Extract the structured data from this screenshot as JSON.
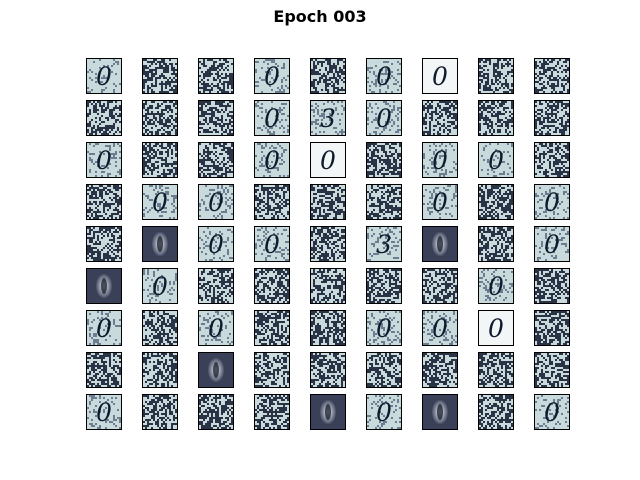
{
  "figure": {
    "title": "Epoch 003"
  },
  "colors": {
    "noise_light": "#c8dadc",
    "noise_dark": "#2a3346",
    "stroke": "#0f1a2e",
    "blob_bg": "#4a5068",
    "blob_fg": "#f0f3f5",
    "light_bg": "#f2f6f6"
  },
  "grid": {
    "rows": 9,
    "cols": 9,
    "kinds_legend": {
      "N": "random noise",
      "Z": "digit 0 on noisy background",
      "C": "clean digit 0 on light background",
      "T": "digit 3 on noisy background",
      "B": "blurry blob on dark background"
    },
    "cells": [
      [
        "Z",
        "N",
        "N",
        "Z",
        "N",
        "Z",
        "C",
        "N",
        "N"
      ],
      [
        "N",
        "N",
        "N",
        "Z",
        "T",
        "Z",
        "N",
        "N",
        "N"
      ],
      [
        "Z",
        "N",
        "N",
        "Z",
        "C",
        "N",
        "Z",
        "Z",
        "N"
      ],
      [
        "N",
        "Z",
        "Z",
        "N",
        "N",
        "N",
        "Z",
        "N",
        "Z"
      ],
      [
        "N",
        "B",
        "Z",
        "Z",
        "N",
        "T",
        "B",
        "N",
        "Z"
      ],
      [
        "B",
        "Z",
        "N",
        "N",
        "N",
        "N",
        "N",
        "Z",
        "N"
      ],
      [
        "Z",
        "N",
        "Z",
        "N",
        "N",
        "Z",
        "Z",
        "C",
        "N"
      ],
      [
        "N",
        "N",
        "B",
        "N",
        "N",
        "N",
        "N",
        "N",
        "N"
      ],
      [
        "Z",
        "N",
        "N",
        "N",
        "B",
        "Z",
        "B",
        "N",
        "Z"
      ]
    ],
    "glyphs": {
      "Z": "0",
      "C": "0",
      "T": "3"
    }
  }
}
